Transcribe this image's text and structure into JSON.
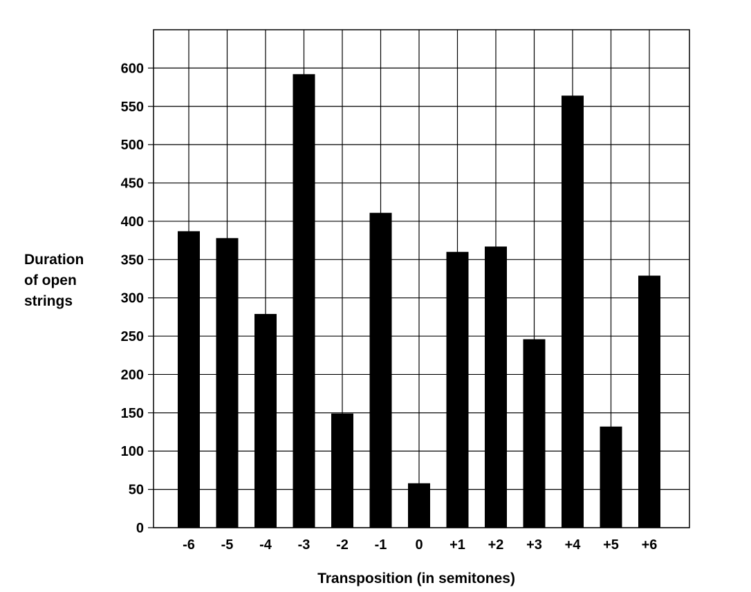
{
  "chart_data": {
    "type": "bar",
    "xlabel": "Transposition (in semitones)",
    "ylabel": [
      "Duration",
      "of open",
      "strings"
    ],
    "categories": [
      "-6",
      "-5",
      "-4",
      "-3",
      "-2",
      "-1",
      "0",
      "+1",
      "+2",
      "+3",
      "+4",
      "+5",
      "+6"
    ],
    "values": [
      387,
      378,
      279,
      592,
      149,
      411,
      58,
      360,
      367,
      246,
      564,
      132,
      329
    ],
    "ylim": [
      0,
      650
    ],
    "yticks": [
      0,
      50,
      100,
      150,
      200,
      250,
      300,
      350,
      400,
      450,
      500,
      550,
      600
    ],
    "grid": true,
    "bar_color": "#000000",
    "grid_color": "#000000"
  }
}
